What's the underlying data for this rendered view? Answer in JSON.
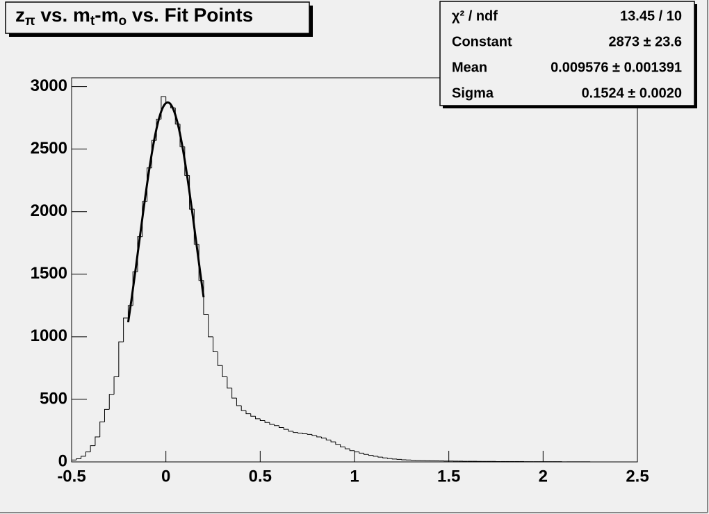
{
  "chart_data": {
    "type": "histogram",
    "title": [
      "z",
      "π",
      " vs. m",
      "t",
      "-m",
      "o",
      " vs. Fit Points"
    ],
    "bins": [
      -0.5,
      -0.475,
      -0.45,
      -0.425,
      -0.4,
      -0.375,
      -0.35,
      -0.325,
      -0.3,
      -0.275,
      -0.25,
      -0.225,
      -0.2,
      -0.175,
      -0.15,
      -0.125,
      -0.1,
      -0.075,
      -0.05,
      -0.025,
      0,
      0.025,
      0.05,
      0.075,
      0.1,
      0.125,
      0.15,
      0.175,
      0.2,
      0.225,
      0.25,
      0.275,
      0.3,
      0.325,
      0.35,
      0.375,
      0.4,
      0.425,
      0.45,
      0.475,
      0.5,
      0.525,
      0.55,
      0.575,
      0.6,
      0.625,
      0.65,
      0.675,
      0.7,
      0.725,
      0.75,
      0.775,
      0.8,
      0.825,
      0.85,
      0.875,
      0.9,
      0.925,
      0.95,
      0.975,
      1,
      1.025,
      1.05,
      1.075,
      1.1,
      1.125,
      1.15,
      1.175,
      1.2,
      1.225,
      1.25,
      1.275,
      1.3,
      1.325,
      1.35,
      1.375,
      1.4,
      1.425,
      1.45,
      1.475,
      1.5,
      1.525,
      1.55,
      1.575,
      1.6,
      1.625,
      1.65,
      1.675,
      1.7,
      1.725,
      1.75,
      1.775,
      1.8,
      1.825,
      1.85,
      1.875,
      1.9,
      1.925,
      1.95,
      1.975,
      2,
      2.025,
      2.05,
      2.075,
      2.1,
      2.125,
      2.15,
      2.175,
      2.2,
      2.225,
      2.25,
      2.275,
      2.3,
      2.325,
      2.35,
      2.375,
      2.4,
      2.425,
      2.45,
      2.475,
      2.5
    ],
    "values": [
      15,
      25,
      45,
      80,
      130,
      200,
      320,
      420,
      540,
      680,
      960,
      1150,
      1250,
      1520,
      1800,
      2080,
      2350,
      2570,
      2740,
      2920,
      2870,
      2830,
      2700,
      2520,
      2290,
      2020,
      1740,
      1450,
      1180,
      1000,
      880,
      770,
      680,
      590,
      510,
      450,
      410,
      385,
      365,
      345,
      330,
      315,
      300,
      290,
      275,
      260,
      245,
      235,
      230,
      225,
      220,
      210,
      200,
      190,
      175,
      160,
      140,
      120,
      105,
      90,
      80,
      70,
      60,
      52,
      45,
      38,
      32,
      27,
      23,
      20,
      17,
      15,
      13,
      12,
      11,
      10,
      9,
      8,
      8,
      7,
      7,
      6,
      6,
      5,
      5,
      5,
      4,
      4,
      4,
      4,
      3,
      3,
      3,
      3,
      3,
      3,
      2,
      2,
      2,
      2,
      2,
      2,
      2,
      2,
      1,
      1,
      1,
      1,
      1,
      1,
      0,
      0,
      0,
      0,
      0,
      0,
      0,
      0,
      0,
      0
    ],
    "color": "#000000",
    "xlim": [
      -0.5,
      2.5
    ],
    "xticks": [
      -0.5,
      0,
      0.5,
      1,
      1.5,
      2,
      2.5
    ],
    "ylim": [
      0,
      3070
    ],
    "yticks": [
      0,
      500,
      1000,
      1500,
      2000,
      2500,
      3000
    ],
    "fit": {
      "type": "gaus",
      "range": [
        -0.2,
        0.2
      ]
    },
    "stats": [
      {
        "name": "χ² / ndf",
        "label": "13.45 / 10"
      },
      {
        "name": "Constant",
        "value": 2873,
        "label": "2873 ± 23.6"
      },
      {
        "name": "Mean",
        "value": 0.009576,
        "label": "0.009576 ± 0.001391"
      },
      {
        "name": "Sigma",
        "value": 0.1524,
        "label": "0.1524 ± 0.0020"
      }
    ]
  }
}
